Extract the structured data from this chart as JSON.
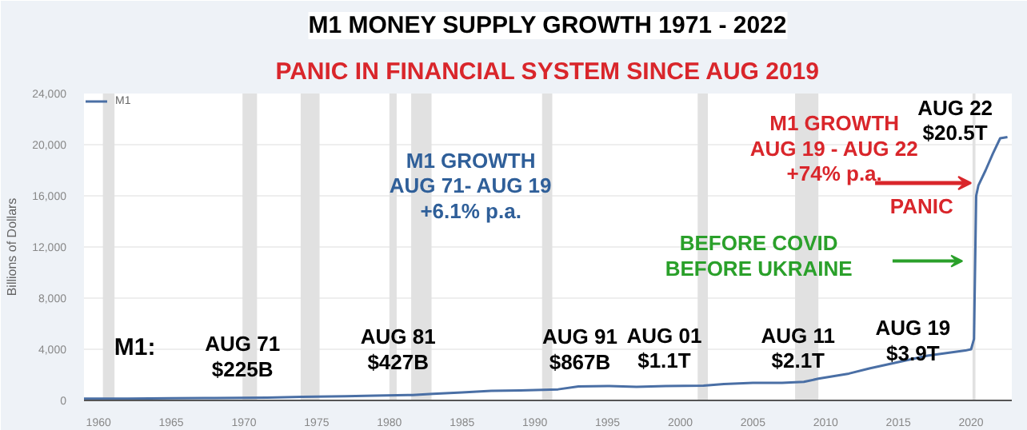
{
  "chart_data": {
    "type": "line",
    "title": "M1 MONEY SUPPLY GROWTH 1971 - 2022",
    "subtitle": "PANIC IN FINANCIAL SYSTEM SINCE AUG 2019",
    "ylabel": "Billions of Dollars",
    "x": [
      1959,
      1962,
      1965,
      1968,
      1971.6,
      1974,
      1977,
      1979,
      1981.6,
      1983,
      1985,
      1987,
      1989,
      1991.6,
      1993,
      1995,
      1997,
      1999,
      2001.6,
      2003,
      2005,
      2007,
      2008.5,
      2009.5,
      2011.6,
      2013,
      2015,
      2017,
      2019.6,
      2020.0,
      2020.2,
      2020.35,
      2020.5,
      2021,
      2021.5,
      2022,
      2022.5
    ],
    "series": [
      {
        "name": "M1",
        "color": "#4a6fa5",
        "values": [
          140,
          147,
          165,
          190,
          225,
          275,
          330,
          380,
          427,
          510,
          620,
          745,
          785,
          867,
          1100,
          1130,
          1070,
          1120,
          1150,
          1280,
          1370,
          1370,
          1450,
          1700,
          2100,
          2500,
          3000,
          3500,
          3900,
          4000,
          4800,
          16000,
          16800,
          18000,
          19300,
          20500,
          20600
        ]
      }
    ],
    "xlim": [
      1959,
      2022.8
    ],
    "xticks": [
      1960,
      1965,
      1970,
      1975,
      1980,
      1985,
      1990,
      1995,
      2000,
      2005,
      2010,
      2015,
      2020
    ],
    "ylim": [
      0,
      24000
    ],
    "yticks": [
      {
        "value": 0,
        "label": "0"
      },
      {
        "value": 4000,
        "label": "4,000"
      },
      {
        "value": 8000,
        "label": "8,000"
      },
      {
        "value": 12000,
        "label": "12,000"
      },
      {
        "value": 16000,
        "label": "16,000"
      },
      {
        "value": 20000,
        "label": "20,000"
      },
      {
        "value": 24000,
        "label": "24,000"
      }
    ],
    "bands": [
      {
        "axis": "x",
        "from": 1960.3,
        "to": 1961.1,
        "color": "#e1e1e1"
      },
      {
        "axis": "x",
        "from": 1969.9,
        "to": 1970.9,
        "color": "#e1e1e1"
      },
      {
        "axis": "x",
        "from": 1973.9,
        "to": 1975.2,
        "color": "#e1e1e1"
      },
      {
        "axis": "x",
        "from": 1980.0,
        "to": 1980.5,
        "color": "#e1e1e1"
      },
      {
        "axis": "x",
        "from": 1981.5,
        "to": 1982.9,
        "color": "#e1e1e1"
      },
      {
        "axis": "x",
        "from": 1990.5,
        "to": 1991.2,
        "color": "#e1e1e1"
      },
      {
        "axis": "x",
        "from": 2001.2,
        "to": 2001.9,
        "color": "#e1e1e1"
      },
      {
        "axis": "x",
        "from": 2007.9,
        "to": 2009.5,
        "color": "#e1e1e1"
      },
      {
        "axis": "x",
        "from": 2020.1,
        "to": 2020.3,
        "color": "#e1e1e1"
      }
    ],
    "annotations": [
      "M1:",
      "AUG 71\n$225B",
      "AUG 81\n$427B",
      "AUG 91\n$867B",
      "AUG 01\n$1.1T",
      "AUG 11\n$2.1T",
      "AUG 19\n$3.9T",
      "AUG 22\n$20.5T",
      "M1 GROWTH\nAUG 71- AUG 19\n+6.1% p.a.",
      {
        "text": "M1 GROWTH\nAUG 19 - AUG 22\n+74% p.a.",
        "x": 2020.0,
        "y": 17000
      },
      "PANIC",
      "BEFORE COVID\nBEFORE UKRAINE"
    ],
    "grid": "y",
    "legend": "top left",
    "marker": "none",
    "line_style": "solid"
  }
}
